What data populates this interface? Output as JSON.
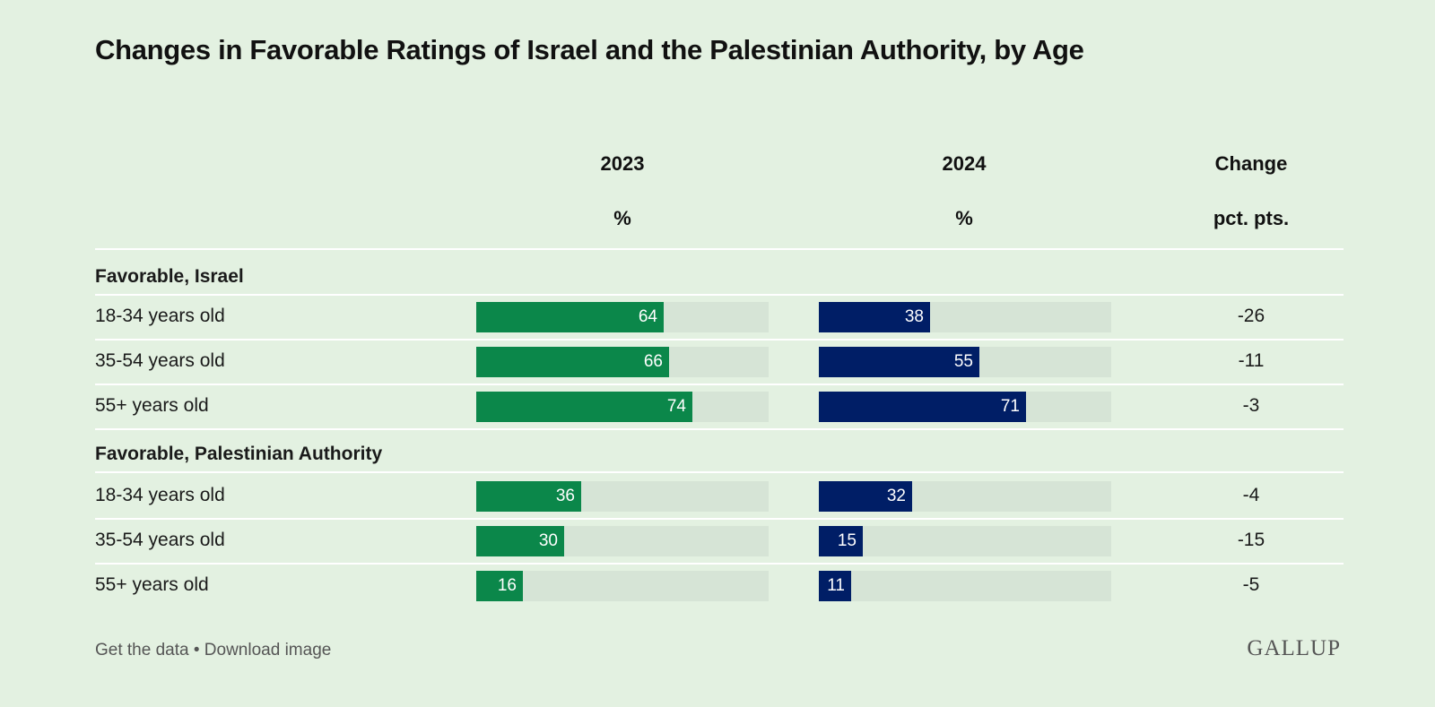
{
  "chart_data": {
    "type": "bar",
    "title": "Changes in Favorable Ratings of Israel and the Palestinian Authority, by Age",
    "columns": [
      {
        "key": "2023",
        "label": "2023",
        "unit": "%"
      },
      {
        "key": "2024",
        "label": "2024",
        "unit": "%"
      },
      {
        "key": "change",
        "label": "Change",
        "unit": "pct. pts."
      }
    ],
    "xlim": [
      0,
      100
    ],
    "groups": [
      {
        "name": "Favorable, Israel",
        "rows": [
          {
            "label": "18-34 years old",
            "v2023": 64,
            "v2024": 38,
            "change": "-26"
          },
          {
            "label": "35-54 years old",
            "v2023": 66,
            "v2024": 55,
            "change": "-11"
          },
          {
            "label": "55+ years old",
            "v2023": 74,
            "v2024": 71,
            "change": "-3"
          }
        ]
      },
      {
        "name": "Favorable, Palestinian Authority",
        "rows": [
          {
            "label": "18-34 years old",
            "v2023": 36,
            "v2024": 32,
            "change": "-4"
          },
          {
            "label": "35-54 years old",
            "v2023": 30,
            "v2024": 15,
            "change": "-15"
          },
          {
            "label": "55+ years old",
            "v2023": 16,
            "v2024": 11,
            "change": "-5"
          }
        ]
      }
    ],
    "colors": {
      "y2023": "#0b874a",
      "y2024": "#001e66",
      "track": "#d6e4d6",
      "background": "#e3f1e1"
    }
  },
  "footer": {
    "get_data": "Get the data",
    "separator": "•",
    "download": "Download image",
    "logo": "GALLUP"
  }
}
